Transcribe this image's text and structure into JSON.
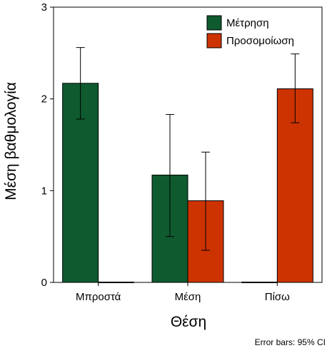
{
  "chart_data": {
    "type": "bar",
    "categories": [
      "Μπροστά",
      "Μέση",
      "Πίσω"
    ],
    "series": [
      {
        "name": "Μέτρηση",
        "color": "#0f5a2f",
        "values": [
          2.17,
          1.17,
          0
        ],
        "ci_low": [
          1.78,
          0.5,
          null
        ],
        "ci_high": [
          2.56,
          1.83,
          null
        ]
      },
      {
        "name": "Προσομοίωση",
        "color": "#cc3300",
        "values": [
          0,
          0.89,
          2.11
        ],
        "ci_low": [
          null,
          0.35,
          1.74
        ],
        "ci_high": [
          null,
          1.42,
          2.49
        ]
      }
    ],
    "xlabel": "Θέση",
    "ylabel": "Μέση βαθμολογία",
    "ylim": [
      0,
      3
    ],
    "yticks": [
      0,
      1,
      2,
      3
    ],
    "legend_position": "top-right",
    "grid": false,
    "note": "Error bars: 95% CI"
  }
}
